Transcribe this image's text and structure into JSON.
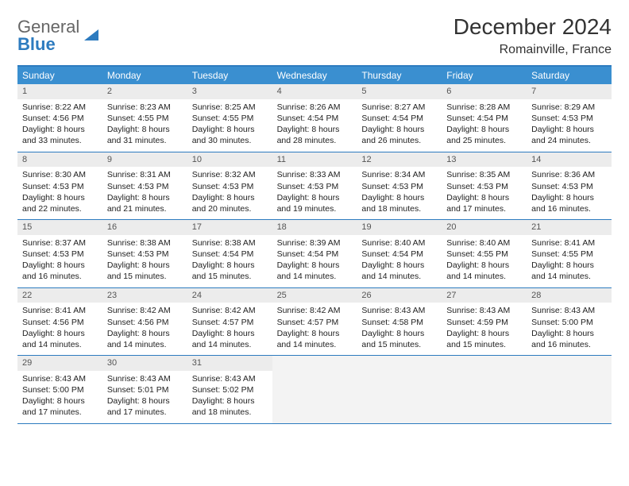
{
  "logo": {
    "line1": "General",
    "line2": "Blue"
  },
  "title": "December 2024",
  "location": "Romainville, France",
  "colors": {
    "brand": "#2d7bbf",
    "header_bg": "#3a8fd0",
    "header_text": "#ffffff",
    "daynum_bg": "#ececec",
    "text": "#222222",
    "empty_bg": "#f3f3f3"
  },
  "weekday_labels": [
    "Sunday",
    "Monday",
    "Tuesday",
    "Wednesday",
    "Thursday",
    "Friday",
    "Saturday"
  ],
  "weeks": [
    [
      {
        "day": 1,
        "sunrise": "8:22 AM",
        "sunset": "4:56 PM",
        "daylight": "8 hours and 33 minutes."
      },
      {
        "day": 2,
        "sunrise": "8:23 AM",
        "sunset": "4:55 PM",
        "daylight": "8 hours and 31 minutes."
      },
      {
        "day": 3,
        "sunrise": "8:25 AM",
        "sunset": "4:55 PM",
        "daylight": "8 hours and 30 minutes."
      },
      {
        "day": 4,
        "sunrise": "8:26 AM",
        "sunset": "4:54 PM",
        "daylight": "8 hours and 28 minutes."
      },
      {
        "day": 5,
        "sunrise": "8:27 AM",
        "sunset": "4:54 PM",
        "daylight": "8 hours and 26 minutes."
      },
      {
        "day": 6,
        "sunrise": "8:28 AM",
        "sunset": "4:54 PM",
        "daylight": "8 hours and 25 minutes."
      },
      {
        "day": 7,
        "sunrise": "8:29 AM",
        "sunset": "4:53 PM",
        "daylight": "8 hours and 24 minutes."
      }
    ],
    [
      {
        "day": 8,
        "sunrise": "8:30 AM",
        "sunset": "4:53 PM",
        "daylight": "8 hours and 22 minutes."
      },
      {
        "day": 9,
        "sunrise": "8:31 AM",
        "sunset": "4:53 PM",
        "daylight": "8 hours and 21 minutes."
      },
      {
        "day": 10,
        "sunrise": "8:32 AM",
        "sunset": "4:53 PM",
        "daylight": "8 hours and 20 minutes."
      },
      {
        "day": 11,
        "sunrise": "8:33 AM",
        "sunset": "4:53 PM",
        "daylight": "8 hours and 19 minutes."
      },
      {
        "day": 12,
        "sunrise": "8:34 AM",
        "sunset": "4:53 PM",
        "daylight": "8 hours and 18 minutes."
      },
      {
        "day": 13,
        "sunrise": "8:35 AM",
        "sunset": "4:53 PM",
        "daylight": "8 hours and 17 minutes."
      },
      {
        "day": 14,
        "sunrise": "8:36 AM",
        "sunset": "4:53 PM",
        "daylight": "8 hours and 16 minutes."
      }
    ],
    [
      {
        "day": 15,
        "sunrise": "8:37 AM",
        "sunset": "4:53 PM",
        "daylight": "8 hours and 16 minutes."
      },
      {
        "day": 16,
        "sunrise": "8:38 AM",
        "sunset": "4:53 PM",
        "daylight": "8 hours and 15 minutes."
      },
      {
        "day": 17,
        "sunrise": "8:38 AM",
        "sunset": "4:54 PM",
        "daylight": "8 hours and 15 minutes."
      },
      {
        "day": 18,
        "sunrise": "8:39 AM",
        "sunset": "4:54 PM",
        "daylight": "8 hours and 14 minutes."
      },
      {
        "day": 19,
        "sunrise": "8:40 AM",
        "sunset": "4:54 PM",
        "daylight": "8 hours and 14 minutes."
      },
      {
        "day": 20,
        "sunrise": "8:40 AM",
        "sunset": "4:55 PM",
        "daylight": "8 hours and 14 minutes."
      },
      {
        "day": 21,
        "sunrise": "8:41 AM",
        "sunset": "4:55 PM",
        "daylight": "8 hours and 14 minutes."
      }
    ],
    [
      {
        "day": 22,
        "sunrise": "8:41 AM",
        "sunset": "4:56 PM",
        "daylight": "8 hours and 14 minutes."
      },
      {
        "day": 23,
        "sunrise": "8:42 AM",
        "sunset": "4:56 PM",
        "daylight": "8 hours and 14 minutes."
      },
      {
        "day": 24,
        "sunrise": "8:42 AM",
        "sunset": "4:57 PM",
        "daylight": "8 hours and 14 minutes."
      },
      {
        "day": 25,
        "sunrise": "8:42 AM",
        "sunset": "4:57 PM",
        "daylight": "8 hours and 14 minutes."
      },
      {
        "day": 26,
        "sunrise": "8:43 AM",
        "sunset": "4:58 PM",
        "daylight": "8 hours and 15 minutes."
      },
      {
        "day": 27,
        "sunrise": "8:43 AM",
        "sunset": "4:59 PM",
        "daylight": "8 hours and 15 minutes."
      },
      {
        "day": 28,
        "sunrise": "8:43 AM",
        "sunset": "5:00 PM",
        "daylight": "8 hours and 16 minutes."
      }
    ],
    [
      {
        "day": 29,
        "sunrise": "8:43 AM",
        "sunset": "5:00 PM",
        "daylight": "8 hours and 17 minutes."
      },
      {
        "day": 30,
        "sunrise": "8:43 AM",
        "sunset": "5:01 PM",
        "daylight": "8 hours and 17 minutes."
      },
      {
        "day": 31,
        "sunrise": "8:43 AM",
        "sunset": "5:02 PM",
        "daylight": "8 hours and 18 minutes."
      },
      null,
      null,
      null,
      null
    ]
  ],
  "labels": {
    "sunrise": "Sunrise: ",
    "sunset": "Sunset: ",
    "daylight": "Daylight: "
  }
}
